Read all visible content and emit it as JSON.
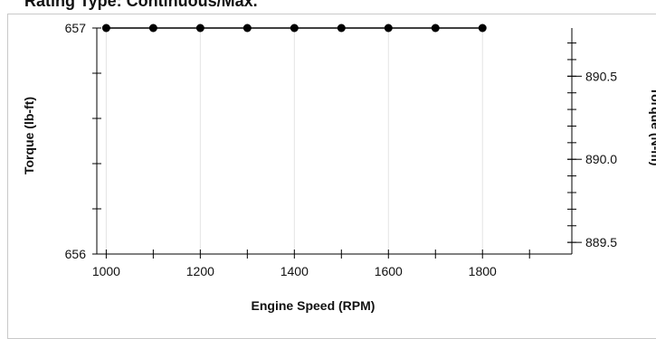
{
  "header": {
    "title": "Rating Type: Continuous/Max."
  },
  "chart_data": {
    "type": "line",
    "xlabel": "Engine Speed (RPM)",
    "ylabel": "Torque (lb-ft)",
    "y2label": "Torque (N-m)",
    "xlim": [
      980,
      1990
    ],
    "ylim": [
      656,
      657
    ],
    "y2lim": [
      889.43,
      890.79
    ],
    "xticks": [
      1000,
      1200,
      1400,
      1600,
      1800
    ],
    "yticks": [
      656,
      657
    ],
    "y2ticks": [
      "889.5",
      "890.0",
      "890.5"
    ],
    "grid": "vertical",
    "series": [
      {
        "x": [
          1000,
          1100,
          1200,
          1300,
          1400,
          1500,
          1600,
          1700,
          1800
        ],
        "values": [
          657,
          657,
          657,
          657,
          657,
          657,
          657,
          657,
          657
        ]
      }
    ],
    "colors": {
      "line": "#000000",
      "marker": "#000000",
      "grid": "#e4e4e4"
    }
  }
}
